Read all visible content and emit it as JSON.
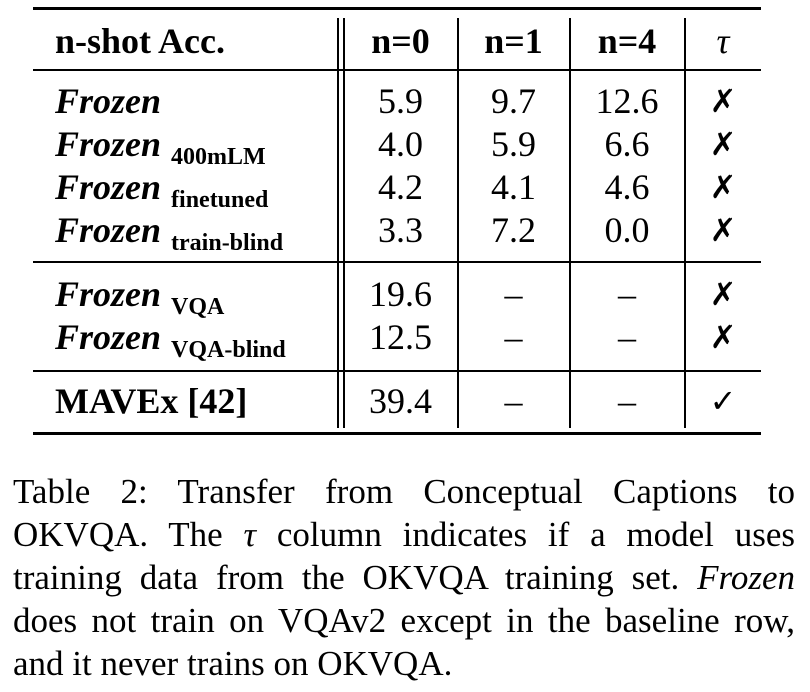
{
  "table": {
    "header": {
      "model": "n-shot Acc.",
      "n0": "n=0",
      "n1": "n=1",
      "n4": "n=4",
      "tau": "τ"
    },
    "groups": [
      [
        {
          "name": "Frozen",
          "sub": "",
          "n0": "5.9",
          "n1": "9.7",
          "n4": "12.6",
          "tau": "✗"
        },
        {
          "name": "Frozen",
          "sub": "400mLM",
          "n0": "4.0",
          "n1": "5.9",
          "n4": "6.6",
          "tau": "✗"
        },
        {
          "name": "Frozen",
          "sub": "finetuned",
          "n0": "4.2",
          "n1": "4.1",
          "n4": "4.6",
          "tau": "✗"
        },
        {
          "name": "Frozen",
          "sub": "train-blind",
          "n0": "3.3",
          "n1": "7.2",
          "n4": "0.0",
          "tau": "✗"
        }
      ],
      [
        {
          "name": "Frozen",
          "sub": "VQA",
          "n0": "19.6",
          "n1": "–",
          "n4": "–",
          "tau": "✗"
        },
        {
          "name": "Frozen",
          "sub": "VQA-blind",
          "n0": "12.5",
          "n1": "–",
          "n4": "–",
          "tau": "✗"
        }
      ],
      [
        {
          "name": "MAVEx [42]",
          "sub": "",
          "n0": "39.4",
          "n1": "–",
          "n4": "–",
          "tau": "✓"
        }
      ]
    ]
  },
  "caption": {
    "part1": "Table 2: Transfer from Conceptual Captions to OKVQA. The ",
    "tau": "τ",
    "part2": " column indicates if a model uses training data from the OKVQA training set. ",
    "frozen": "Frozen",
    "part3": " does not train on VQAv2 except in the baseline row, and it never trains on OKVQA."
  }
}
